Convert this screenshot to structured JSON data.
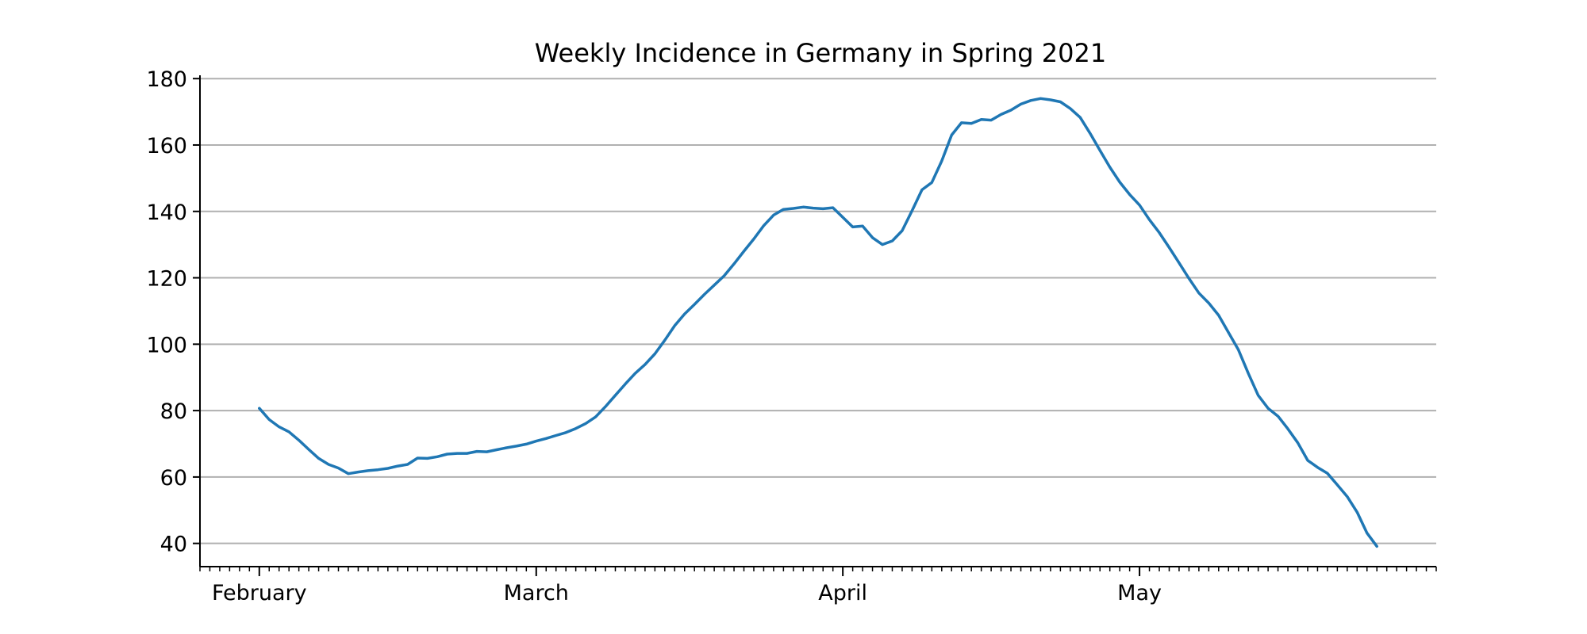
{
  "chart_data": {
    "type": "line",
    "title": "Weekly Incidence in Germany in Spring 2021",
    "xlabel": "",
    "ylabel": "",
    "ylim": [
      33,
      181
    ],
    "yticks": [
      40,
      60,
      80,
      100,
      120,
      140,
      160,
      180
    ],
    "x_axis": {
      "kind": "date",
      "range": [
        "2021-01-26",
        "2021-05-31"
      ],
      "major_ticks": [
        {
          "date": "2021-02-01",
          "label": "February"
        },
        {
          "date": "2021-03-01",
          "label": "March"
        },
        {
          "date": "2021-04-01",
          "label": "April"
        },
        {
          "date": "2021-05-01",
          "label": "May"
        }
      ],
      "minor_ticks": "daily"
    },
    "grid": "horizontal",
    "legend": "none",
    "series": [
      {
        "color": "#1f77b4",
        "start_date": "2021-02-01",
        "step": "1 day",
        "values": [
          80.7,
          77.3,
          75.1,
          73.6,
          71.1,
          68.3,
          65.6,
          63.8,
          62.7,
          61.0,
          61.5,
          61.9,
          62.2,
          62.6,
          63.3,
          63.8,
          65.7,
          65.6,
          66.1,
          66.9,
          67.1,
          67.1,
          67.7,
          67.6,
          68.2,
          68.8,
          69.3,
          69.9,
          70.8,
          71.6,
          72.5,
          73.4,
          74.6,
          76.1,
          78.1,
          81.2,
          84.6,
          88.0,
          91.2,
          93.9,
          97.1,
          101.2,
          105.6,
          109.1,
          112.0,
          115.0,
          117.8,
          120.6,
          124.2,
          128.0,
          131.7,
          135.7,
          138.9,
          140.6,
          140.9,
          141.3,
          141.0,
          140.8,
          141.1,
          138.2,
          135.3,
          135.6,
          132.1,
          130.0,
          131.1,
          134.2,
          140.2,
          146.5,
          148.7,
          155.2,
          163.0,
          166.7,
          166.5,
          167.7,
          167.5,
          169.2,
          170.5,
          172.3,
          173.4,
          174.0,
          173.6,
          173.0,
          171.0,
          168.3,
          163.5,
          158.4,
          153.3,
          148.8,
          145.1,
          141.9,
          137.5,
          133.6,
          129.1,
          124.5,
          119.8,
          115.4,
          112.4,
          108.7,
          103.5,
          98.3,
          91.2,
          84.6,
          80.7,
          78.3,
          74.5,
          70.3,
          65.0,
          62.9,
          61.1,
          57.6,
          54.1,
          49.4,
          43.1,
          39.1
        ]
      }
    ]
  }
}
